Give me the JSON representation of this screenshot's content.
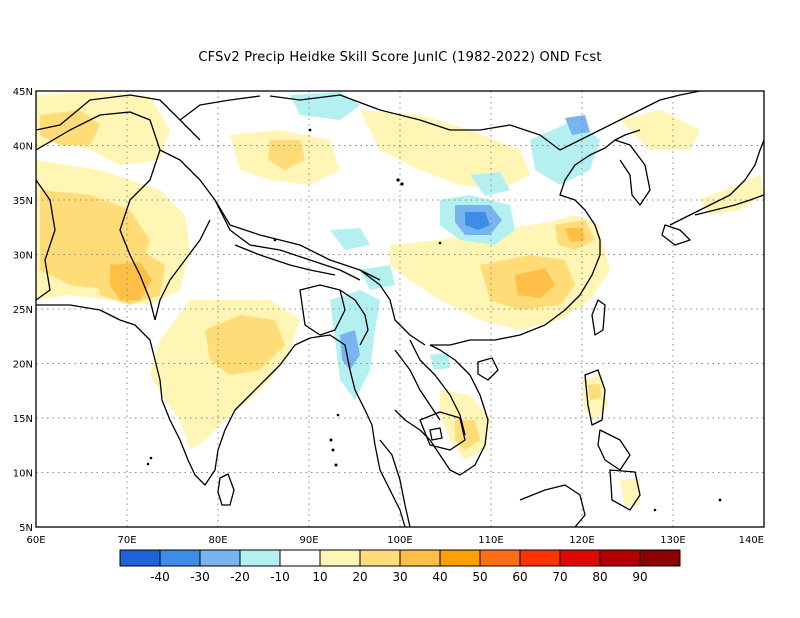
{
  "title": "CFSv2 Precip Heidke Skill Score JunIC (1982-2022) OND Fcst",
  "map": {
    "lon_range": [
      60,
      140
    ],
    "lat_range": [
      5,
      45
    ],
    "lon_ticks": [
      "60E",
      "70E",
      "80E",
      "90E",
      "100E",
      "110E",
      "120E",
      "130E",
      "140E"
    ],
    "lat_ticks": [
      "45N",
      "40N",
      "35N",
      "30N",
      "25N",
      "20N",
      "15N",
      "10N",
      "5N"
    ],
    "grid": "dotted"
  },
  "colorbar": {
    "colors": [
      "#1e64d8",
      "#3c8ce8",
      "#78b4f0",
      "#b4f0f0",
      "#ffffff",
      "#fff5b4",
      "#ffdc78",
      "#ffbe46",
      "#ffa000",
      "#ff6e14",
      "#ff3200",
      "#dc0a00",
      "#b40000",
      "#8c0000"
    ],
    "labels": [
      "-40",
      "-30",
      "-20",
      "-10",
      "10",
      "20",
      "30",
      "40",
      "50",
      "60",
      "70",
      "80",
      "90"
    ]
  },
  "shading_colors": {
    "light_yellow": "#fff5b4",
    "yellow": "#ffdc78",
    "orange": "#ffbe46",
    "light_blue": "#b4f0f0",
    "mid_blue": "#78b4f0",
    "blue": "#3c8ce8"
  }
}
